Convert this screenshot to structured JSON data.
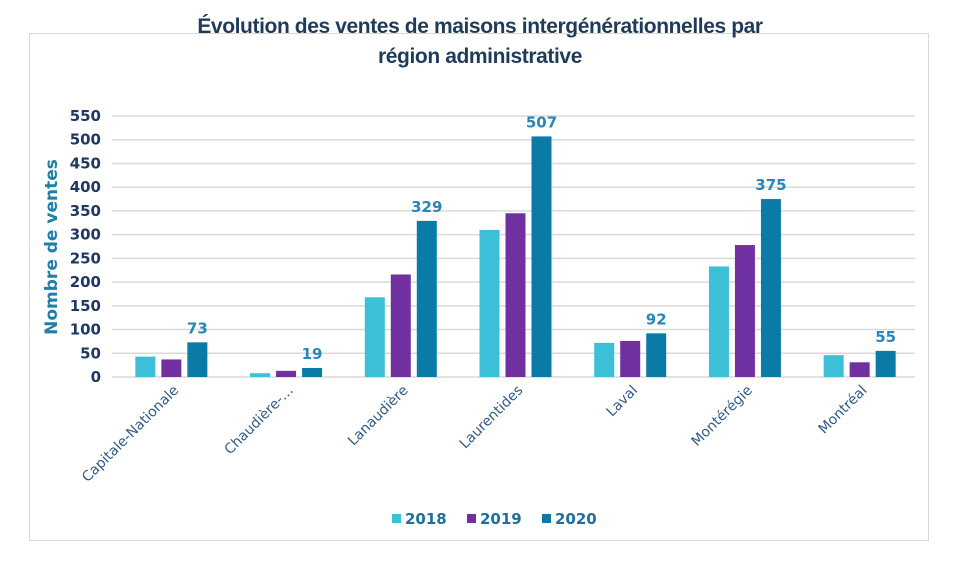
{
  "chart_data": {
    "type": "bar",
    "title": "Évolution des ventes de maisons intergénérationnelles par région administrative",
    "title_lines": [
      "Évolution des ventes de maisons intergénérationnelles par",
      "région administrative"
    ],
    "xlabel": "",
    "ylabel": "Nombre de ventes",
    "ylim": [
      0,
      550
    ],
    "yticks": [
      0,
      50,
      100,
      150,
      200,
      250,
      300,
      350,
      400,
      450,
      500,
      550
    ],
    "grid": true,
    "legend_position": "bottom",
    "categories": [
      "Capitale-Nationale",
      "Chaudière-…",
      "Lanaudière",
      "Laurentides",
      "Laval",
      "Montérégie",
      "Montréal"
    ],
    "series": [
      {
        "name": "2018",
        "color": "#3bc0d8",
        "values": [
          43,
          8,
          168,
          310,
          72,
          233,
          46
        ]
      },
      {
        "name": "2019",
        "color": "#7030a0",
        "values": [
          37,
          13,
          216,
          345,
          76,
          278,
          31
        ]
      },
      {
        "name": "2020",
        "color": "#0a7ba6",
        "values": [
          73,
          19,
          329,
          507,
          92,
          375,
          55
        ],
        "data_labels": [
          "73",
          "19",
          "329",
          "507",
          "92",
          "375",
          "55"
        ]
      }
    ]
  }
}
